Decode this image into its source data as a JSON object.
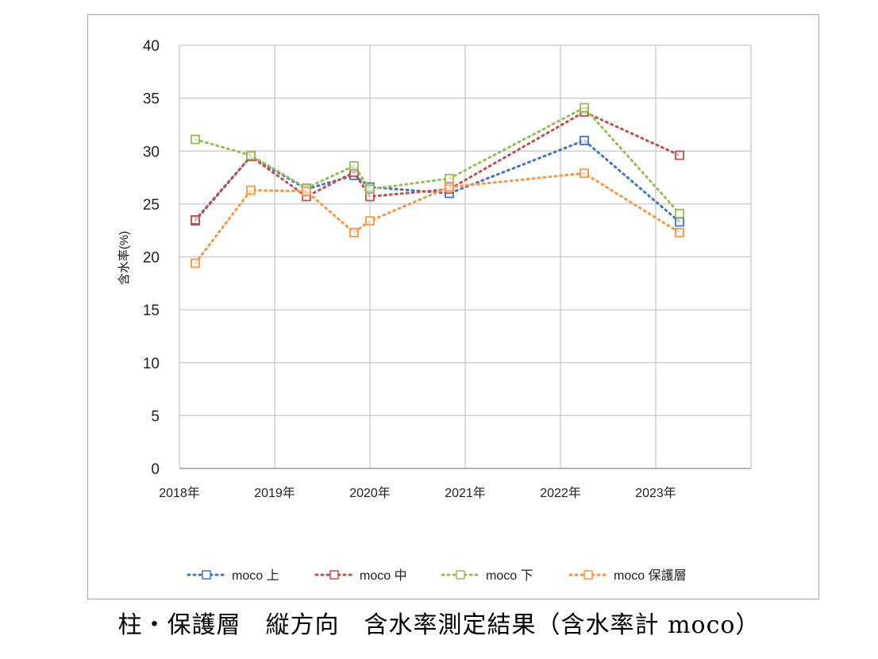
{
  "chart_data": {
    "type": "line",
    "ylabel": "含水率(%)",
    "xlabel": "",
    "ylim": [
      0,
      40
    ],
    "yticks": [
      "0",
      "5",
      "10",
      "15",
      "20",
      "25",
      "30",
      "35",
      "40"
    ],
    "xlim": [
      "2018-01",
      "2024-01"
    ],
    "xticks": [
      "2018年",
      "2019年",
      "2020年",
      "2021年",
      "2022年",
      "2023年"
    ],
    "grid": true,
    "legend_position": "bottom",
    "line_style": "dotted with square markers",
    "x": [
      "2018-03",
      "2018-10",
      "2019-05",
      "2019-11",
      "2020-01",
      "2020-11",
      "2022-04",
      "2023-04"
    ],
    "series": [
      {
        "name": "moco 上",
        "color": "#4472c4",
        "values": [
          23.4,
          29.5,
          26.4,
          27.7,
          26.6,
          26.0,
          31.0,
          23.3
        ]
      },
      {
        "name": "moco 中",
        "color": "#c0504d",
        "values": [
          23.5,
          29.5,
          25.7,
          28.0,
          25.7,
          26.4,
          33.7,
          29.6
        ]
      },
      {
        "name": "moco 下",
        "color": "#9bbb59",
        "values": [
          31.1,
          29.6,
          26.5,
          28.6,
          26.4,
          27.4,
          34.1,
          24.1
        ]
      },
      {
        "name": "moco 保護層",
        "color": "#f79646",
        "values": [
          19.4,
          26.3,
          26.2,
          22.3,
          23.4,
          26.6,
          27.9,
          22.3
        ]
      }
    ]
  },
  "caption": "柱・保護層　縦方向　含水率測定結果（含水率計 moco）"
}
